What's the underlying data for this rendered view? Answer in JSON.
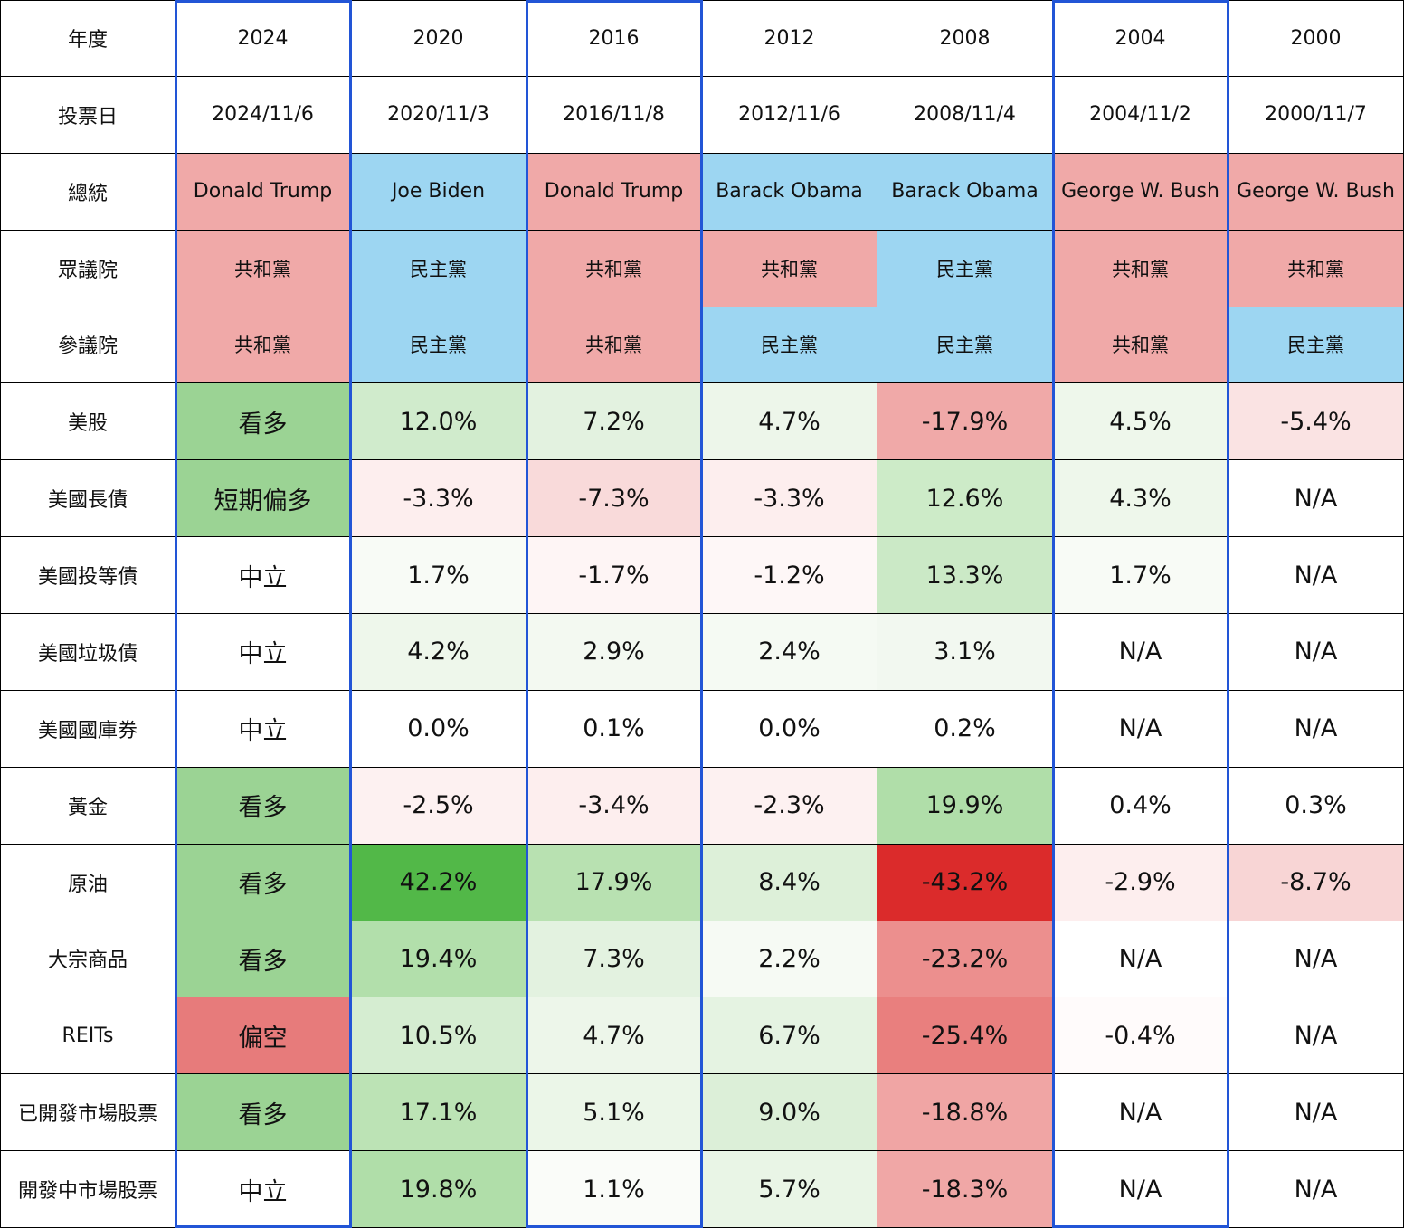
{
  "row_labels": {
    "year": "年度",
    "vote_date": "投票日",
    "president": "總統",
    "house": "眾議院",
    "senate": "參議院"
  },
  "columns": [
    {
      "year": "2024",
      "date": "2024/11/6",
      "president": "Donald Trump",
      "president_party": "rep",
      "house": "共和黨",
      "house_party": "rep",
      "senate": "共和黨",
      "senate_party": "rep"
    },
    {
      "year": "2020",
      "date": "2020/11/3",
      "president": "Joe Biden",
      "president_party": "dem",
      "house": "民主黨",
      "house_party": "dem",
      "senate": "民主黨",
      "senate_party": "dem"
    },
    {
      "year": "2016",
      "date": "2016/11/8",
      "president": "Donald Trump",
      "president_party": "rep",
      "house": "共和黨",
      "house_party": "rep",
      "senate": "共和黨",
      "senate_party": "rep"
    },
    {
      "year": "2012",
      "date": "2012/11/6",
      "president": "Barack Obama",
      "president_party": "dem",
      "house": "共和黨",
      "house_party": "rep",
      "senate": "民主黨",
      "senate_party": "dem"
    },
    {
      "year": "2008",
      "date": "2008/11/4",
      "president": "Barack Obama",
      "president_party": "dem",
      "house": "民主黨",
      "house_party": "dem",
      "senate": "民主黨",
      "senate_party": "dem"
    },
    {
      "year": "2004",
      "date": "2004/11/2",
      "president": "George W. Bush",
      "president_party": "rep",
      "house": "共和黨",
      "house_party": "rep",
      "senate": "共和黨",
      "senate_party": "rep"
    },
    {
      "year": "2000",
      "date": "2000/11/7",
      "president": "George W. Bush",
      "president_party": "rep",
      "house": "共和黨",
      "house_party": "rep",
      "senate": "民主黨",
      "senate_party": "dem"
    }
  ],
  "party_colors": {
    "rep": "#f0a9a8",
    "dem": "#9dd6f2"
  },
  "assets": [
    {
      "label": "美股",
      "values": [
        {
          "text": "看多",
          "bg": "#9bd394"
        },
        {
          "text": "12.0%",
          "bg": "#d0ebcc"
        },
        {
          "text": "7.2%",
          "bg": "#e3f2e0"
        },
        {
          "text": "4.7%",
          "bg": "#edf6ea"
        },
        {
          "text": "-17.9%",
          "bg": "#f0a9a8"
        },
        {
          "text": "4.5%",
          "bg": "#eef7eb"
        },
        {
          "text": "-5.4%",
          "bg": "#fae3e3"
        }
      ]
    },
    {
      "label": "美國長債",
      "values": [
        {
          "text": "短期偏多",
          "bg": "#9bd394"
        },
        {
          "text": "-3.3%",
          "bg": "#fdeeee"
        },
        {
          "text": "-7.3%",
          "bg": "#f9dada"
        },
        {
          "text": "-3.3%",
          "bg": "#fdeeee"
        },
        {
          "text": "12.6%",
          "bg": "#cdebc8"
        },
        {
          "text": "4.3%",
          "bg": "#eef7eb"
        },
        {
          "text": "N/A",
          "bg": "#ffffff"
        }
      ]
    },
    {
      "label": "美國投等債",
      "values": [
        {
          "text": "中立",
          "bg": "#ffffff"
        },
        {
          "text": "1.7%",
          "bg": "#f8fbf6"
        },
        {
          "text": "-1.7%",
          "bg": "#fef5f5"
        },
        {
          "text": "-1.2%",
          "bg": "#fef7f7"
        },
        {
          "text": "13.3%",
          "bg": "#cbe9c6"
        },
        {
          "text": "1.7%",
          "bg": "#f8fbf6"
        },
        {
          "text": "N/A",
          "bg": "#ffffff"
        }
      ]
    },
    {
      "label": "美國垃圾債",
      "values": [
        {
          "text": "中立",
          "bg": "#ffffff"
        },
        {
          "text": "4.2%",
          "bg": "#eef7eb"
        },
        {
          "text": "2.9%",
          "bg": "#f3f9f1"
        },
        {
          "text": "2.4%",
          "bg": "#f5faf3"
        },
        {
          "text": "3.1%",
          "bg": "#f2f8f0"
        },
        {
          "text": "N/A",
          "bg": "#ffffff"
        },
        {
          "text": "N/A",
          "bg": "#ffffff"
        }
      ]
    },
    {
      "label": "美國國庫券",
      "values": [
        {
          "text": "中立",
          "bg": "#ffffff"
        },
        {
          "text": "0.0%",
          "bg": "#ffffff"
        },
        {
          "text": "0.1%",
          "bg": "#ffffff"
        },
        {
          "text": "0.0%",
          "bg": "#ffffff"
        },
        {
          "text": "0.2%",
          "bg": "#ffffff"
        },
        {
          "text": "N/A",
          "bg": "#ffffff"
        },
        {
          "text": "N/A",
          "bg": "#ffffff"
        }
      ]
    },
    {
      "label": "黃金",
      "values": [
        {
          "text": "看多",
          "bg": "#9bd394"
        },
        {
          "text": "-2.5%",
          "bg": "#fdf1f1"
        },
        {
          "text": "-3.4%",
          "bg": "#fdeeee"
        },
        {
          "text": "-2.3%",
          "bg": "#fdf1f1"
        },
        {
          "text": "19.9%",
          "bg": "#b0dea9"
        },
        {
          "text": "0.4%",
          "bg": "#ffffff"
        },
        {
          "text": "0.3%",
          "bg": "#ffffff"
        }
      ]
    },
    {
      "label": "原油",
      "values": [
        {
          "text": "看多",
          "bg": "#9bd394"
        },
        {
          "text": "42.2%",
          "bg": "#52b848"
        },
        {
          "text": "17.9%",
          "bg": "#b8e1b1"
        },
        {
          "text": "8.4%",
          "bg": "#ddf0d9"
        },
        {
          "text": "-43.2%",
          "bg": "#db2b2b"
        },
        {
          "text": "-2.9%",
          "bg": "#fdeeee"
        },
        {
          "text": "-8.7%",
          "bg": "#f8d5d5"
        }
      ]
    },
    {
      "label": "大宗商品",
      "values": [
        {
          "text": "看多",
          "bg": "#9bd394"
        },
        {
          "text": "19.4%",
          "bg": "#b2dfab"
        },
        {
          "text": "7.3%",
          "bg": "#e3f2e0"
        },
        {
          "text": "2.2%",
          "bg": "#f6faf4"
        },
        {
          "text": "-23.2%",
          "bg": "#ec8f8e"
        },
        {
          "text": "N/A",
          "bg": "#ffffff"
        },
        {
          "text": "N/A",
          "bg": "#ffffff"
        }
      ]
    },
    {
      "label": "REITs",
      "values": [
        {
          "text": "偏空",
          "bg": "#e77b7b"
        },
        {
          "text": "10.5%",
          "bg": "#d5edd1"
        },
        {
          "text": "4.7%",
          "bg": "#edf6ea"
        },
        {
          "text": "6.7%",
          "bg": "#e5f3e2"
        },
        {
          "text": "-25.4%",
          "bg": "#e97f7e"
        },
        {
          "text": "-0.4%",
          "bg": "#fffbfb"
        },
        {
          "text": "N/A",
          "bg": "#ffffff"
        }
      ]
    },
    {
      "label": "已開發市場股票",
      "values": [
        {
          "text": "看多",
          "bg": "#9bd394"
        },
        {
          "text": "17.1%",
          "bg": "#bce3b5"
        },
        {
          "text": "5.1%",
          "bg": "#ebf6e8"
        },
        {
          "text": "9.0%",
          "bg": "#dcefd8"
        },
        {
          "text": "-18.8%",
          "bg": "#f0a5a4"
        },
        {
          "text": "N/A",
          "bg": "#ffffff"
        },
        {
          "text": "N/A",
          "bg": "#ffffff"
        }
      ]
    },
    {
      "label": "開發中市場股票",
      "values": [
        {
          "text": "中立",
          "bg": "#ffffff"
        },
        {
          "text": "19.8%",
          "bg": "#b0dea9"
        },
        {
          "text": "1.1%",
          "bg": "#fafcf9"
        },
        {
          "text": "5.7%",
          "bg": "#e9f5e6"
        },
        {
          "text": "-18.3%",
          "bg": "#f0a7a6"
        },
        {
          "text": "N/A",
          "bg": "#ffffff"
        },
        {
          "text": "N/A",
          "bg": "#ffffff"
        }
      ]
    }
  ],
  "highlight_color": "#2255d6"
}
